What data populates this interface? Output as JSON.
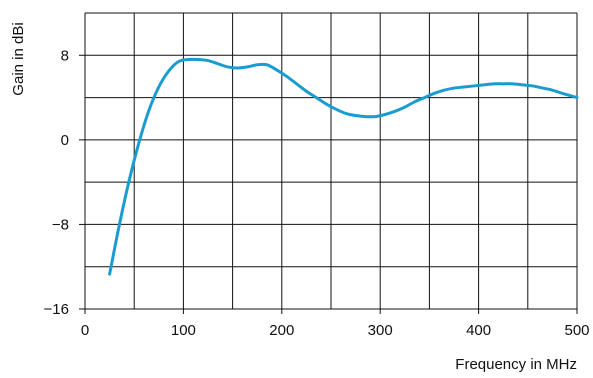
{
  "chart_data": {
    "type": "line",
    "title": "",
    "xlabel": "Frequency in MHz",
    "ylabel": "Gain in dBi",
    "xlim": [
      0,
      500
    ],
    "ylim": [
      -16,
      12
    ],
    "x_ticks": [
      0,
      100,
      200,
      300,
      400,
      500
    ],
    "y_ticks": [
      -16,
      -8,
      0,
      8
    ],
    "grid": true,
    "grid_x": [
      0,
      50,
      100,
      150,
      200,
      250,
      300,
      350,
      400,
      450,
      500
    ],
    "grid_y": [
      -16,
      -12,
      -8,
      -4,
      0,
      4,
      8,
      12
    ],
    "legend": "none",
    "colors": {
      "line": "#1a9cd0",
      "grid": "#111111",
      "text": "#111111"
    },
    "series": [
      {
        "x": [
          25,
          35,
          45,
          55,
          65,
          75,
          85,
          95,
          105,
          115,
          125,
          135,
          145,
          155,
          165,
          175,
          185,
          195,
          205,
          215,
          225,
          235,
          245,
          255,
          265,
          275,
          285,
          295,
          305,
          315,
          325,
          335,
          345,
          355,
          365,
          375,
          385,
          395,
          405,
          415,
          425,
          435,
          445,
          455,
          465,
          475,
          485,
          500
        ],
        "y": [
          -12.7,
          -8.0,
          -3.8,
          -0.2,
          2.8,
          5.0,
          6.5,
          7.4,
          7.6,
          7.6,
          7.5,
          7.2,
          6.9,
          6.8,
          6.9,
          7.1,
          7.1,
          6.6,
          6.0,
          5.3,
          4.6,
          4.0,
          3.4,
          2.9,
          2.5,
          2.3,
          2.2,
          2.2,
          2.4,
          2.7,
          3.1,
          3.6,
          4.0,
          4.4,
          4.7,
          4.9,
          5.0,
          5.1,
          5.2,
          5.3,
          5.3,
          5.3,
          5.2,
          5.1,
          4.9,
          4.7,
          4.4,
          4.0
        ]
      }
    ]
  }
}
